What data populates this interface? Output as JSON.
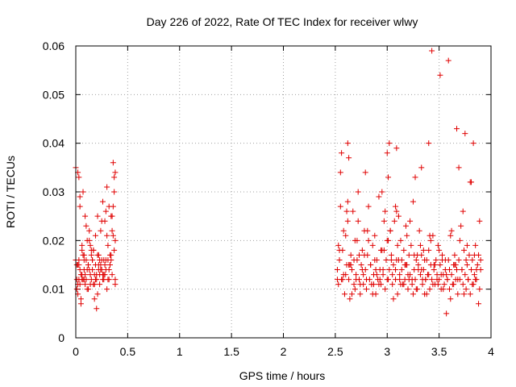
{
  "chart_data": {
    "type": "scatter",
    "title": "Day 226 of 2022, Rate Of TEC Index for receiver wlwy",
    "xlabel": "GPS time / hours",
    "ylabel": "ROTI / TECUs",
    "xlim": [
      0,
      4
    ],
    "ylim": [
      0,
      0.06
    ],
    "x_ticks": [
      "0",
      "0.5",
      "1",
      "1.5",
      "2",
      "2.5",
      "3",
      "3.5",
      "4"
    ],
    "y_ticks": [
      "0",
      "0.01",
      "0.02",
      "0.03",
      "0.04",
      "0.05",
      "0.06"
    ],
    "grid": true,
    "marker": "+",
    "marker_color": "#e00000",
    "series": [
      {
        "x": [
          0.0,
          0.01,
          0.02,
          0.02,
          0.03,
          0.03,
          0.04,
          0.04,
          0.05,
          0.06,
          0.06,
          0.07,
          0.08,
          0.08,
          0.09,
          0.1,
          0.11,
          0.12,
          0.13,
          0.14,
          0.15,
          0.16,
          0.17,
          0.18,
          0.19,
          0.2,
          0.21,
          0.22,
          0.23,
          0.24,
          0.25,
          0.26,
          0.27,
          0.28,
          0.29,
          0.3,
          0.31,
          0.32,
          0.33,
          0.34,
          0.35,
          0.36,
          0.37,
          0.38,
          0.01,
          0.03,
          0.05,
          0.07,
          0.09,
          0.11,
          0.13,
          0.15,
          0.17,
          0.19,
          0.21,
          0.23,
          0.25,
          0.27,
          0.29,
          0.31,
          0.33,
          0.35,
          0.37,
          0.02,
          0.04,
          0.06,
          0.08,
          0.1,
          0.12,
          0.14,
          0.16,
          0.18,
          0.2,
          0.22,
          0.24,
          0.26,
          0.28,
          0.3,
          0.32,
          0.34,
          0.36,
          0.38,
          0.0,
          0.05,
          0.1,
          0.15,
          0.2,
          0.25,
          0.3,
          0.35,
          0.02,
          0.07,
          0.12,
          0.17,
          0.22,
          0.27,
          0.32,
          0.37,
          0.04,
          0.09,
          0.14,
          0.19,
          0.24,
          0.29,
          0.34,
          0.38,
          0.01,
          0.06,
          0.11,
          0.16,
          0.21,
          0.26,
          0.31,
          0.36,
          0.03,
          0.08,
          0.13,
          0.18,
          0.23,
          0.28,
          0.33,
          0.38
        ],
        "y": [
          0.035,
          0.012,
          0.034,
          0.009,
          0.015,
          0.033,
          0.011,
          0.027,
          0.008,
          0.018,
          0.012,
          0.03,
          0.014,
          0.016,
          0.025,
          0.012,
          0.01,
          0.015,
          0.022,
          0.013,
          0.017,
          0.016,
          0.011,
          0.008,
          0.021,
          0.013,
          0.025,
          0.015,
          0.011,
          0.022,
          0.014,
          0.028,
          0.013,
          0.024,
          0.016,
          0.031,
          0.012,
          0.027,
          0.015,
          0.025,
          0.022,
          0.036,
          0.03,
          0.02,
          0.01,
          0.016,
          0.013,
          0.017,
          0.011,
          0.014,
          0.02,
          0.012,
          0.018,
          0.015,
          0.009,
          0.013,
          0.016,
          0.012,
          0.014,
          0.019,
          0.017,
          0.013,
          0.033,
          0.011,
          0.014,
          0.019,
          0.012,
          0.023,
          0.015,
          0.011,
          0.016,
          0.013,
          0.006,
          0.017,
          0.014,
          0.012,
          0.015,
          0.021,
          0.014,
          0.016,
          0.021,
          0.034,
          0.016,
          0.007,
          0.016,
          0.018,
          0.012,
          0.024,
          0.01,
          0.025,
          0.015,
          0.012,
          0.01,
          0.018,
          0.014,
          0.016,
          0.012,
          0.018,
          0.029,
          0.013,
          0.019,
          0.012,
          0.015,
          0.026,
          0.017,
          0.011,
          0.015,
          0.013,
          0.02,
          0.014,
          0.017,
          0.013,
          0.016,
          0.027,
          0.012,
          0.017,
          0.014,
          0.011,
          0.016,
          0.013,
          0.015,
          0.012
        ],
        "x2": [
          2.52,
          2.53,
          2.54,
          2.55,
          2.56,
          2.57,
          2.58,
          2.59,
          2.6,
          2.61,
          2.62,
          2.63,
          2.64,
          2.65,
          2.66,
          2.67,
          2.68,
          2.69,
          2.7,
          2.71,
          2.72,
          2.73,
          2.74,
          2.75,
          2.76,
          2.77,
          2.78,
          2.79,
          2.8,
          2.81,
          2.82,
          2.83,
          2.84,
          2.85,
          2.86,
          2.87,
          2.88,
          2.89,
          2.9,
          2.91,
          2.92,
          2.93,
          2.94,
          2.95,
          2.96,
          2.97,
          2.98,
          2.99,
          3.0,
          3.01,
          3.02,
          3.03,
          3.04,
          3.05,
          3.06,
          3.07,
          3.08,
          3.09,
          3.1,
          3.11,
          3.12,
          3.13,
          3.14,
          3.15,
          3.16,
          3.17,
          3.18,
          3.19,
          3.2,
          3.21,
          3.22,
          3.23,
          3.24,
          3.25,
          3.26,
          3.27,
          3.28,
          3.29,
          3.3,
          3.31,
          3.32,
          3.33,
          3.34,
          3.35,
          3.36,
          3.37,
          3.38,
          3.39,
          3.4,
          3.41,
          3.42,
          3.43,
          3.44,
          3.45,
          3.46,
          3.47,
          3.48,
          3.49,
          3.5,
          3.51,
          3.52,
          3.53,
          3.54,
          3.55,
          3.56,
          3.57,
          3.58,
          3.59,
          3.6,
          3.61,
          3.62,
          3.63,
          3.64,
          3.65,
          3.66,
          3.67,
          3.68,
          3.69,
          3.7,
          3.71,
          3.72,
          3.73,
          3.74,
          3.75,
          3.76,
          3.77,
          3.78,
          3.79,
          3.8,
          3.81,
          3.82,
          3.83,
          3.84,
          3.85,
          3.86,
          3.87,
          3.88,
          3.89,
          3.9,
          2.52,
          2.54,
          2.56,
          2.58,
          2.6,
          2.62,
          2.64,
          2.66,
          2.68,
          2.7,
          2.72,
          2.74,
          2.76,
          2.78,
          2.8,
          2.82,
          2.84,
          2.86,
          2.88,
          2.9,
          2.92,
          2.94,
          2.96,
          2.98,
          3.0,
          3.02,
          3.04,
          3.06,
          3.08,
          3.1,
          3.12,
          3.14,
          3.16,
          3.18,
          3.2,
          3.22,
          3.24,
          3.26,
          3.28,
          3.3,
          3.32,
          3.34,
          3.36,
          3.38,
          3.4,
          3.42,
          3.44,
          3.46,
          3.48,
          3.5,
          3.52,
          3.54,
          3.56,
          3.58,
          3.6,
          3.62,
          3.64,
          3.66,
          3.68,
          3.7,
          3.72,
          3.74,
          3.76,
          3.78,
          3.8,
          3.82,
          3.84,
          3.86,
          3.88,
          3.9,
          2.53,
          2.57,
          2.61,
          2.65,
          2.69,
          2.73,
          2.77,
          2.81,
          2.85,
          2.89,
          2.93,
          2.97,
          3.01,
          3.05,
          3.09,
          3.13,
          3.17,
          3.21,
          3.25,
          3.29,
          3.33,
          3.37,
          3.41,
          3.45,
          3.49,
          3.53,
          3.57,
          3.61,
          3.65,
          3.69,
          3.73,
          3.77,
          3.81,
          3.85,
          3.89,
          2.55,
          2.63,
          2.71,
          2.79,
          2.87,
          2.95,
          3.03,
          3.11,
          3.19,
          3.27,
          3.35,
          3.43,
          3.51,
          3.59,
          3.67,
          3.75,
          3.83,
          2.62,
          2.63,
          3.4,
          3.0,
          3.01,
          3.08,
          3.09,
          3.33,
          3.32,
          2.58,
          2.98,
          3.2,
          3.78,
          3.9
        ],
        "y2": [
          0.014,
          0.011,
          0.016,
          0.034,
          0.012,
          0.018,
          0.013,
          0.009,
          0.021,
          0.015,
          0.024,
          0.012,
          0.008,
          0.017,
          0.014,
          0.026,
          0.011,
          0.02,
          0.013,
          0.016,
          0.03,
          0.012,
          0.009,
          0.015,
          0.018,
          0.011,
          0.022,
          0.014,
          0.01,
          0.017,
          0.027,
          0.012,
          0.015,
          0.011,
          0.019,
          0.013,
          0.021,
          0.009,
          0.016,
          0.012,
          0.029,
          0.014,
          0.011,
          0.018,
          0.013,
          0.024,
          0.01,
          0.016,
          0.02,
          0.012,
          0.014,
          0.022,
          0.017,
          0.011,
          0.015,
          0.024,
          0.012,
          0.026,
          0.009,
          0.016,
          0.013,
          0.02,
          0.014,
          0.011,
          0.018,
          0.012,
          0.023,
          0.015,
          0.01,
          0.017,
          0.013,
          0.019,
          0.011,
          0.028,
          0.014,
          0.012,
          0.016,
          0.01,
          0.015,
          0.022,
          0.013,
          0.017,
          0.011,
          0.014,
          0.009,
          0.012,
          0.016,
          0.013,
          0.018,
          0.01,
          0.015,
          0.012,
          0.021,
          0.014,
          0.011,
          0.016,
          0.013,
          0.019,
          0.012,
          0.015,
          0.01,
          0.017,
          0.013,
          0.011,
          0.014,
          0.005,
          0.012,
          0.016,
          0.01,
          0.021,
          0.013,
          0.011,
          0.015,
          0.017,
          0.012,
          0.014,
          0.009,
          0.016,
          0.012,
          0.023,
          0.014,
          0.011,
          0.018,
          0.013,
          0.01,
          0.015,
          0.012,
          0.017,
          0.009,
          0.014,
          0.016,
          0.011,
          0.013,
          0.019,
          0.012,
          0.015,
          0.017,
          0.01,
          0.014,
          0.012,
          0.018,
          0.038,
          0.022,
          0.013,
          0.028,
          0.015,
          0.009,
          0.016,
          0.012,
          0.024,
          0.011,
          0.014,
          0.017,
          0.012,
          0.02,
          0.015,
          0.009,
          0.016,
          0.013,
          0.011,
          0.018,
          0.014,
          0.026,
          0.012,
          0.04,
          0.016,
          0.008,
          0.014,
          0.019,
          0.012,
          0.016,
          0.011,
          0.015,
          0.013,
          0.024,
          0.012,
          0.017,
          0.01,
          0.014,
          0.019,
          0.012,
          0.016,
          0.009,
          0.013,
          0.02,
          0.011,
          0.015,
          0.012,
          0.018,
          0.013,
          0.01,
          0.016,
          0.012,
          0.014,
          0.022,
          0.011,
          0.015,
          0.012,
          0.02,
          0.014,
          0.009,
          0.016,
          0.012,
          0.032,
          0.011,
          0.017,
          0.014,
          0.007,
          0.016,
          0.019,
          0.012,
          0.026,
          0.015,
          0.01,
          0.017,
          0.013,
          0.022,
          0.011,
          0.014,
          0.012,
          0.018,
          0.02,
          0.013,
          0.016,
          0.011,
          0.015,
          0.012,
          0.009,
          0.017,
          0.014,
          0.012,
          0.021,
          0.015,
          0.011,
          0.016,
          0.013,
          0.008,
          0.015,
          0.035,
          0.026,
          0.019,
          0.032,
          0.012,
          0.024,
          0.027,
          0.015,
          0.02,
          0.034,
          0.011,
          0.03,
          0.022,
          0.025,
          0.021,
          0.033,
          0.018,
          0.059,
          0.054,
          0.057,
          0.043,
          0.042,
          0.04,
          0.04,
          0.037,
          0.04,
          0.038,
          0.033,
          0.027,
          0.039,
          0.035
        ]
      }
    ]
  }
}
